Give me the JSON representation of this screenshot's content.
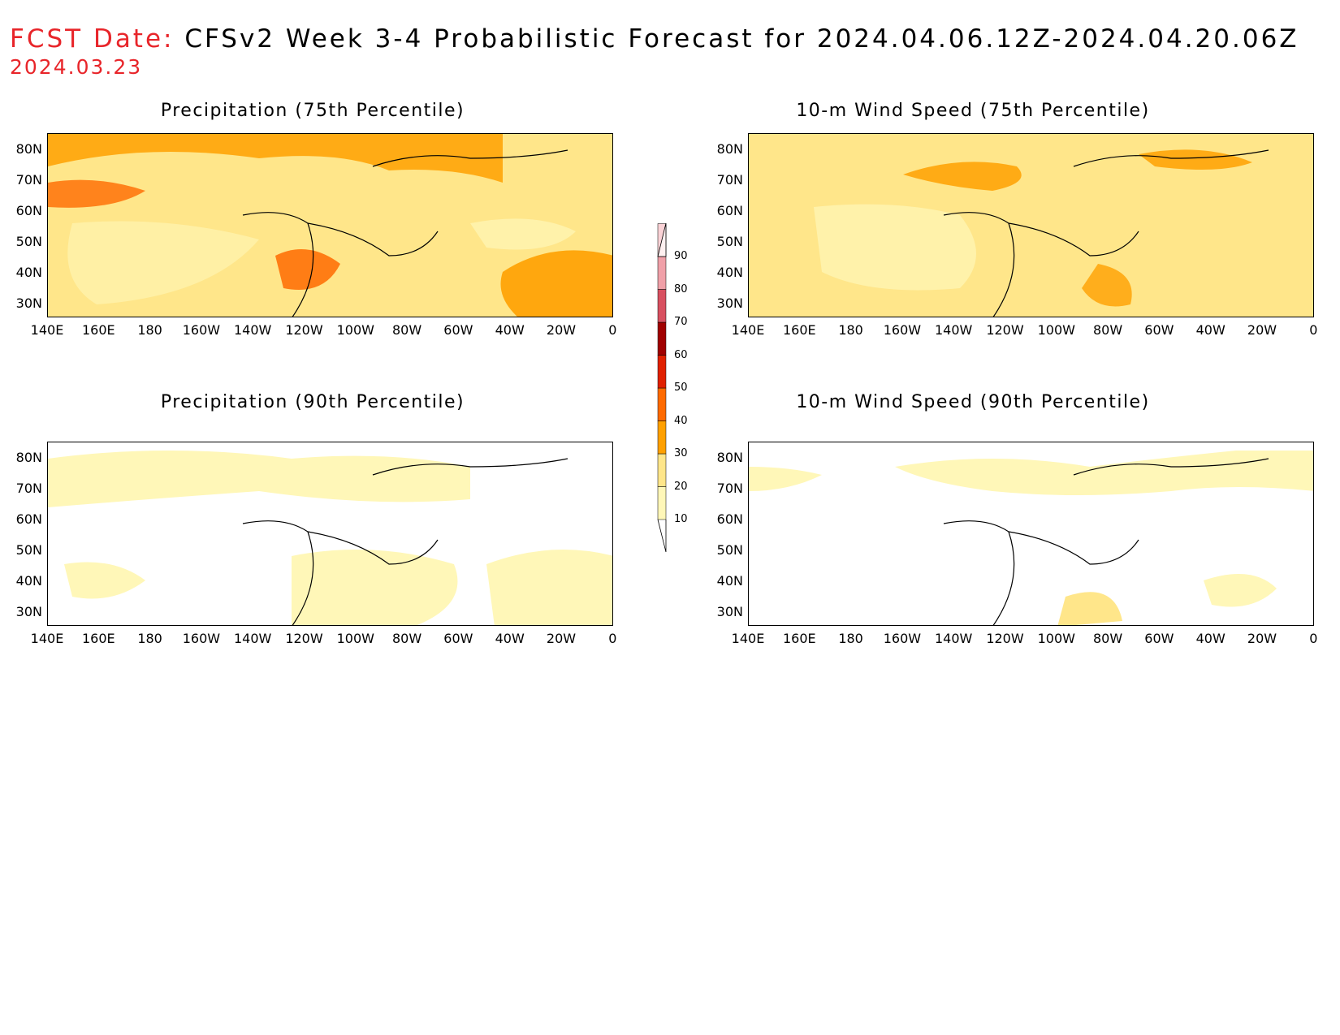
{
  "header": {
    "fcst_label": "FCST Date:",
    "fcst_date": "2024.03.23",
    "title": "CFSv2 Week 3-4 Probabilistic Forecast for 2024.04.06.12Z-2024.04.20.06Z"
  },
  "panels": [
    {
      "title": "Precipitation (75th Percentile)"
    },
    {
      "title": "10-m Wind Speed (75th Percentile)"
    },
    {
      "title": "Precipitation (90th Percentile)"
    },
    {
      "title": "10-m Wind Speed (90th Percentile)"
    }
  ],
  "lat_labels": [
    "80N",
    "70N",
    "60N",
    "50N",
    "40N",
    "30N"
  ],
  "lon_labels": [
    "140E",
    "160E",
    "180",
    "160W",
    "140W",
    "120W",
    "100W",
    "80W",
    "60W",
    "40W",
    "20W",
    "0"
  ],
  "colorbar": {
    "levels": [
      "10",
      "20",
      "30",
      "40",
      "50",
      "60",
      "70",
      "80",
      "90"
    ],
    "colors": [
      "#fff7b8",
      "#ffe68a",
      "#ffa000",
      "#ff6a00",
      "#e02000",
      "#a00000",
      "#d85060",
      "#f0a0a8",
      "#fad2d6"
    ]
  }
}
